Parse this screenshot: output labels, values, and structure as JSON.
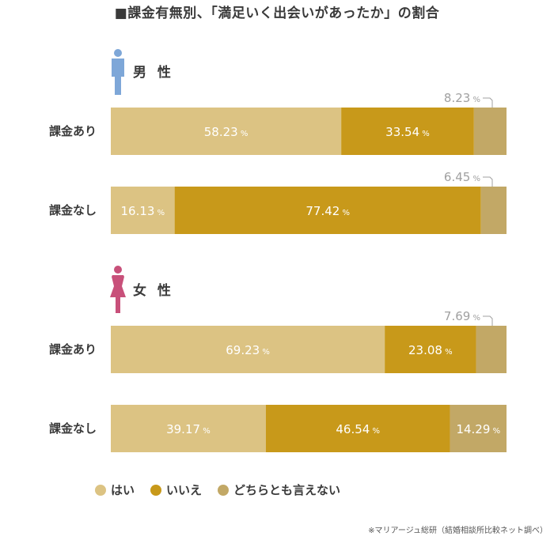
{
  "title": "■課金有無別、「満足いく出会いがあったか」の割合",
  "colors": {
    "yes": "#dcc383",
    "no": "#c8991a",
    "neither": "#c2a866",
    "male_icon": "#7ea7d8",
    "female_icon": "#c8507a"
  },
  "legend": {
    "yes": "はい",
    "no": "いいえ",
    "neither": "どちらとも言えない"
  },
  "source": "※マリアージュ総研（結婚相談所比較ネット調べ）",
  "chart_data": {
    "type": "bar",
    "stacked": true,
    "orientation": "horizontal",
    "unit": "%",
    "title": "■課金有無別、「満足いく出会いがあったか」の割合",
    "xlim": [
      0,
      100
    ],
    "legend_position": "bottom",
    "series": [
      {
        "name": "はい"
      },
      {
        "name": "いいえ"
      },
      {
        "name": "どちらとも言えない"
      }
    ],
    "groups": [
      {
        "label": "男 性",
        "icon": "male-icon",
        "rows": [
          {
            "label": "課金あり",
            "values": [
              58.23,
              33.54,
              8.23
            ],
            "text": [
              "58.23",
              "33.54",
              "8.23"
            ]
          },
          {
            "label": "課金なし",
            "values": [
              16.13,
              77.42,
              6.45
            ],
            "text": [
              "16.13",
              "77.42",
              "6.45"
            ]
          }
        ]
      },
      {
        "label": "女 性",
        "icon": "female-icon",
        "rows": [
          {
            "label": "課金あり",
            "values": [
              69.23,
              23.08,
              7.69
            ],
            "text": [
              "69.23",
              "23.08",
              "7.69"
            ]
          },
          {
            "label": "課金なし",
            "values": [
              39.17,
              46.54,
              14.29
            ],
            "text": [
              "39.17",
              "46.54",
              "14.29"
            ]
          }
        ]
      }
    ]
  }
}
